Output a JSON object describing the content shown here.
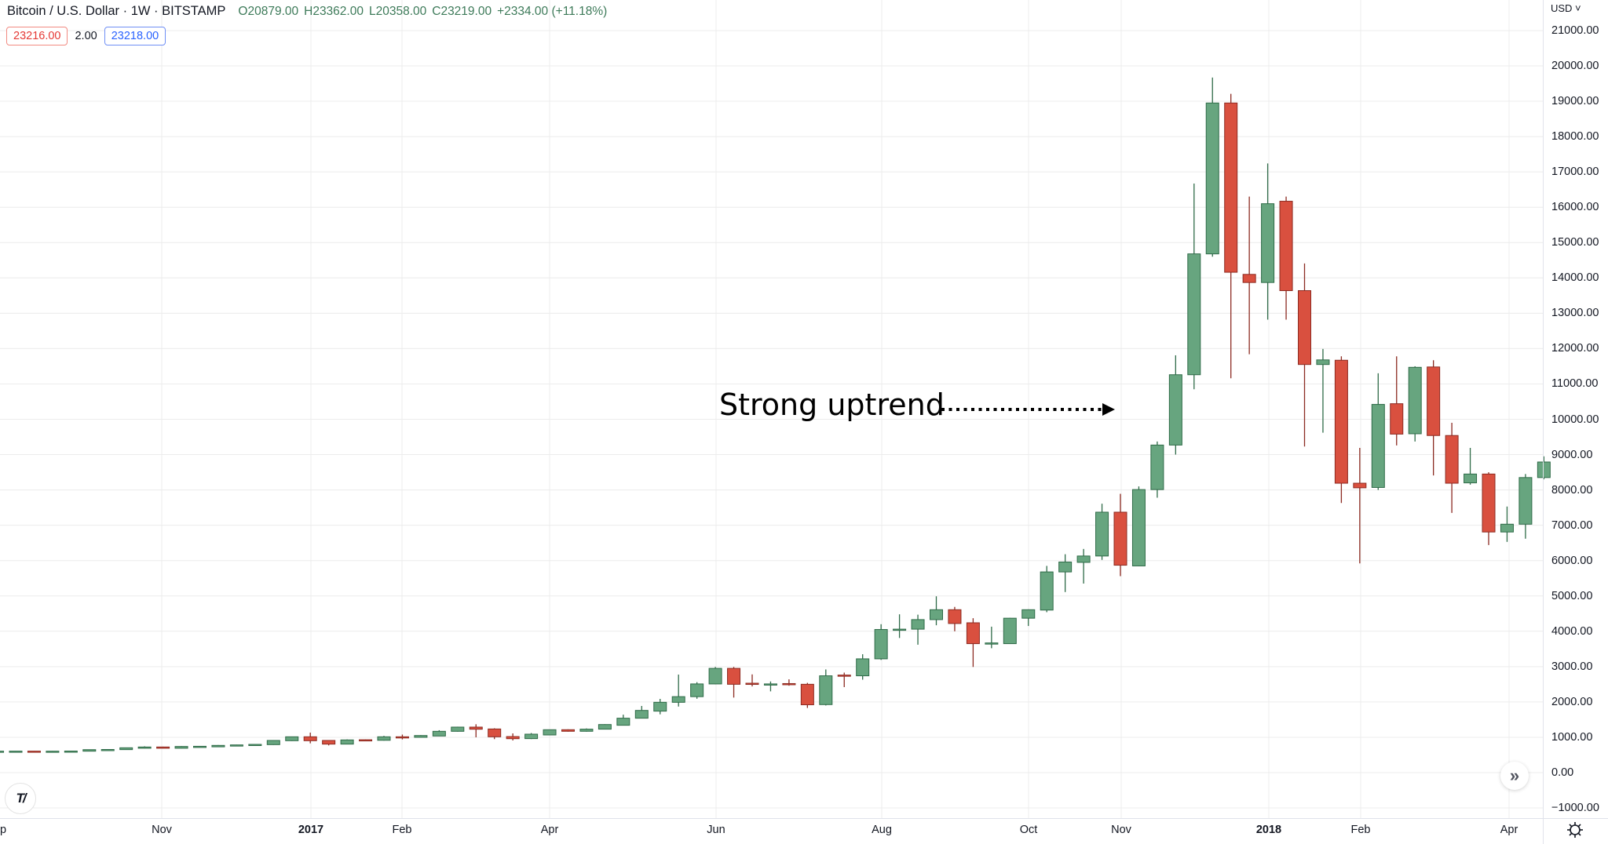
{
  "legend": {
    "title": "Bitcoin / U.S. Dollar · 1W · BITSTAMP",
    "open": "O20879.00",
    "high": "H23362.00",
    "low": "L20358.00",
    "close": "C23219.00",
    "change": "+2334.00 (+11.18%)"
  },
  "trade": {
    "sell_price": "23216.00",
    "spread": "2.00",
    "buy_price": "23218.00"
  },
  "price_axis": {
    "currency": "USD ˅",
    "labels": [
      "21000.00",
      "20000.00",
      "19000.00",
      "18000.00",
      "17000.00",
      "16000.00",
      "15000.00",
      "14000.00",
      "13000.00",
      "12000.00",
      "11000.00",
      "10000.00",
      "9000.00",
      "8000.00",
      "7000.00",
      "6000.00",
      "5000.00",
      "4000.00",
      "3000.00",
      "2000.00",
      "1000.00",
      "0.00",
      "−1000.00"
    ]
  },
  "time_axis": {
    "labels": [
      "p",
      "Nov",
      "2017",
      "Feb",
      "Apr",
      "Jun",
      "Aug",
      "Oct",
      "Nov",
      "2018",
      "Feb",
      "Apr"
    ]
  },
  "annotation": {
    "text": "Strong uptrend"
  },
  "icons": {
    "scroll_right": "»",
    "logo": "TV",
    "settings": "gear-icon"
  },
  "colors": {
    "up": "#67a57f",
    "up_border": "#2f6b48",
    "down": "#d9503f",
    "down_border": "#8c2b22",
    "grid": "#ececec"
  },
  "chart_data": {
    "type": "candlestick",
    "interval": "1W",
    "ylim": [
      -1000,
      21000
    ],
    "candles_ohlc": [
      [
        605,
        612,
        600,
        607
      ],
      [
        607,
        612,
        603,
        608
      ],
      [
        608,
        612,
        600,
        604
      ],
      [
        604,
        612,
        600,
        607
      ],
      [
        607,
        615,
        600,
        610
      ],
      [
        607,
        655,
        603,
        650
      ],
      [
        648,
        660,
        640,
        655
      ],
      [
        651,
        710,
        645,
        703
      ],
      [
        690,
        745,
        685,
        725
      ],
      [
        725,
        735,
        685,
        690
      ],
      [
        690,
        750,
        685,
        740
      ],
      [
        735,
        755,
        730,
        745
      ],
      [
        730,
        780,
        725,
        770
      ],
      [
        760,
        790,
        755,
        784
      ],
      [
        780,
        800,
        770,
        799
      ],
      [
        792,
        920,
        785,
        910
      ],
      [
        903,
        1020,
        895,
        1014
      ],
      [
        1014,
        1132,
        829,
        903
      ],
      [
        910,
        915,
        770,
        807
      ],
      [
        807,
        940,
        800,
        925
      ],
      [
        930,
        940,
        890,
        910
      ],
      [
        915,
        1040,
        905,
        1014
      ],
      [
        1014,
        1076,
        940,
        995
      ],
      [
        999,
        1060,
        990,
        1050
      ],
      [
        1036,
        1200,
        1030,
        1169
      ],
      [
        1169,
        1300,
        1160,
        1288
      ],
      [
        1288,
        1369,
        999,
        1228
      ],
      [
        1235,
        1255,
        948,
        1014
      ],
      [
        1020,
        1110,
        910,
        960
      ],
      [
        962,
        1120,
        950,
        1088
      ],
      [
        1066,
        1220,
        1060,
        1214
      ],
      [
        1214,
        1225,
        1160,
        1170
      ],
      [
        1170,
        1250,
        1160,
        1230
      ],
      [
        1230,
        1370,
        1225,
        1361
      ],
      [
        1340,
        1640,
        1335,
        1540
      ],
      [
        1540,
        1887,
        1535,
        1760
      ],
      [
        1740,
        2087,
        1650,
        1990
      ],
      [
        1990,
        2775,
        1870,
        2150
      ],
      [
        2150,
        2560,
        2090,
        2510
      ],
      [
        2510,
        2990,
        2500,
        2950
      ],
      [
        2950,
        2990,
        2124,
        2500
      ],
      [
        2530,
        2780,
        2440,
        2510
      ],
      [
        2500,
        2580,
        2300,
        2510
      ],
      [
        2520,
        2640,
        2460,
        2500
      ],
      [
        2500,
        2540,
        1830,
        1920
      ],
      [
        1925,
        2920,
        1900,
        2740
      ],
      [
        2760,
        2830,
        2420,
        2730
      ],
      [
        2740,
        3350,
        2630,
        3220
      ],
      [
        3220,
        4200,
        3190,
        4050
      ],
      [
        4040,
        4480,
        3810,
        4060
      ],
      [
        4060,
        4470,
        3620,
        4330
      ],
      [
        4330,
        4990,
        4170,
        4610
      ],
      [
        4610,
        4690,
        4000,
        4220
      ],
      [
        4240,
        4370,
        2990,
        3650
      ],
      [
        3660,
        4130,
        3520,
        3670
      ],
      [
        3650,
        4380,
        3640,
        4370
      ],
      [
        4370,
        4620,
        4150,
        4610
      ],
      [
        4600,
        5850,
        4540,
        5680
      ],
      [
        5680,
        6180,
        5110,
        5960
      ],
      [
        5950,
        6330,
        5350,
        6130
      ],
      [
        6130,
        7610,
        6020,
        7370
      ],
      [
        7370,
        7890,
        5560,
        5870
      ],
      [
        5850,
        8100,
        5840,
        8010
      ],
      [
        8010,
        9370,
        7780,
        9270
      ],
      [
        9270,
        11810,
        9000,
        11260
      ],
      [
        11260,
        16670,
        10850,
        14680
      ],
      [
        14680,
        19670,
        14600,
        18950
      ],
      [
        18950,
        19210,
        11160,
        14160
      ],
      [
        14100,
        16300,
        11840,
        13870
      ],
      [
        13870,
        17240,
        12820,
        16100
      ],
      [
        16170,
        16300,
        12820,
        13640
      ],
      [
        13640,
        14410,
        9230,
        11550
      ],
      [
        11550,
        11990,
        9620,
        11680
      ],
      [
        11670,
        11780,
        7630,
        8190
      ],
      [
        8190,
        9190,
        5920,
        8060
      ],
      [
        8070,
        11300,
        8000,
        10420
      ],
      [
        10440,
        11780,
        9260,
        9580
      ],
      [
        9590,
        11500,
        9370,
        11470
      ],
      [
        11480,
        11670,
        8410,
        9540
      ],
      [
        9540,
        9900,
        7350,
        8190
      ],
      [
        8200,
        9190,
        8150,
        8450
      ],
      [
        8450,
        8500,
        6440,
        6810
      ],
      [
        6810,
        7530,
        6530,
        7030
      ],
      [
        7030,
        8450,
        6620,
        8350
      ],
      [
        8350,
        8950,
        8300,
        8790
      ]
    ]
  }
}
